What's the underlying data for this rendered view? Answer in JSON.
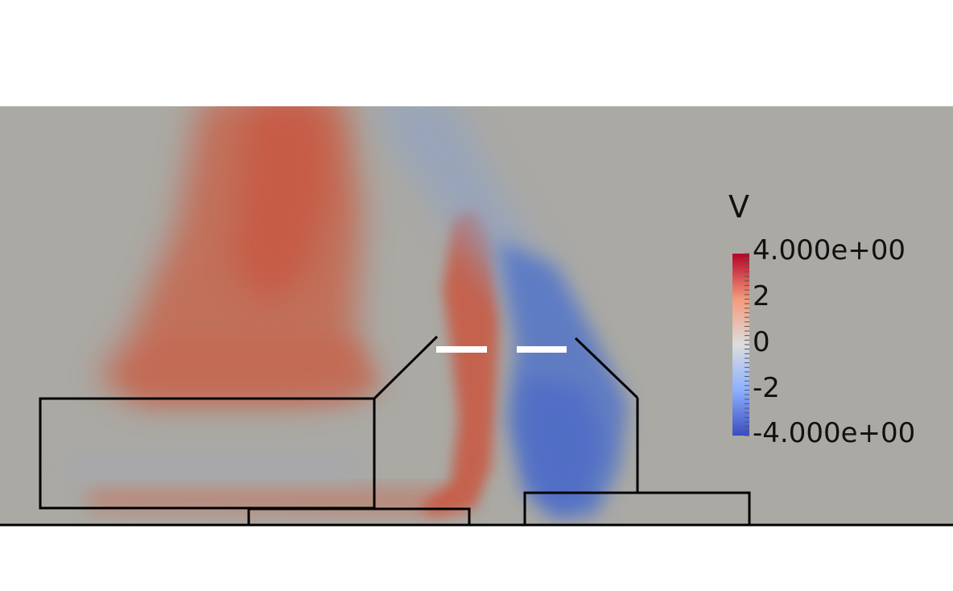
{
  "colors": {
    "background_page": "#ffffff",
    "field_neutral": "#aaa9a4",
    "positive_red": "#c9523d",
    "negative_blue": "#4f70c6",
    "outline": "#000000",
    "highlight": "#ffffff"
  },
  "color_legend": {
    "title": "V",
    "colormap": [
      "#3b4cc0",
      "#8db0fe",
      "#dddddd",
      "#f49a7b",
      "#b40426"
    ],
    "max_label": "4.000e+00",
    "mid_high_label": "2",
    "zero_label": "0",
    "mid_low_label": "-2",
    "min_label": "-4.000e+00",
    "range": [
      -4,
      4
    ]
  }
}
